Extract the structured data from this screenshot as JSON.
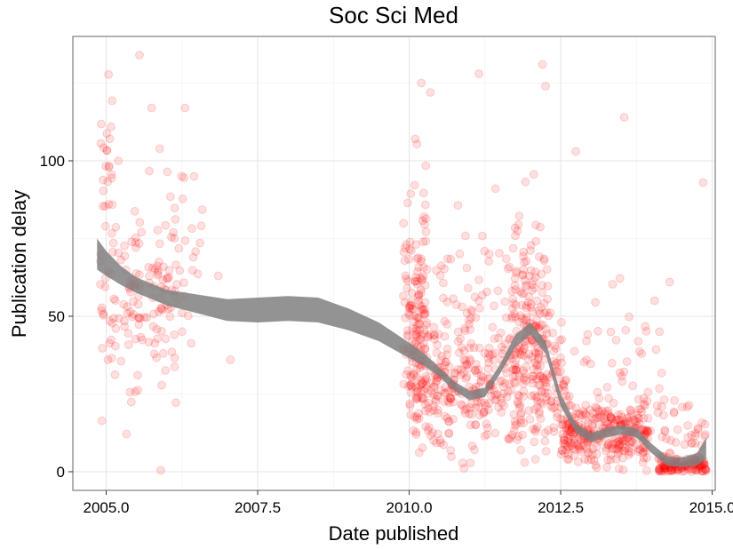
{
  "chart_data": {
    "type": "scatter",
    "title": "Soc Sci Med",
    "xlabel": "Date published",
    "ylabel": "Publication delay",
    "xlim": [
      2004.45,
      2015.05
    ],
    "ylim": [
      -6,
      140
    ],
    "x_ticks": [
      2005.0,
      2007.5,
      2010.0,
      2012.5,
      2015.0
    ],
    "x_tick_labels": [
      "2005.0",
      "2007.5",
      "2010.0",
      "2012.5",
      "2015.0"
    ],
    "y_ticks": [
      0,
      50,
      100
    ],
    "y_tick_labels": [
      "0",
      "50",
      "100"
    ],
    "grid": true,
    "legend": "none",
    "point_color": "#ff0000",
    "point_opacity": 0.12,
    "smooth_color": "#808080",
    "series": [
      {
        "type": "scatter",
        "clusters": [
          {
            "x_range": [
              2004.9,
              2006.3
            ],
            "y_mean": 55,
            "y_sd": 14,
            "n": 140
          },
          {
            "x_range": [
              2004.9,
              2005.1
            ],
            "y_mean": 100,
            "y_sd": 12,
            "n": 24
          },
          {
            "x_range": [
              2005.3,
              2006.6
            ],
            "y_mean": 72,
            "y_sd": 16,
            "n": 30
          },
          {
            "x_range": [
              2009.9,
              2010.3
            ],
            "y_mean": 55,
            "y_sd": 18,
            "n": 120
          },
          {
            "x_range": [
              2010.0,
              2011.9
            ],
            "y_mean": 28,
            "y_sd": 10,
            "n": 320
          },
          {
            "x_range": [
              2010.1,
              2012.0
            ],
            "y_mean": 55,
            "y_sd": 18,
            "n": 90
          },
          {
            "x_range": [
              2011.7,
              2012.3
            ],
            "y_mean": 48,
            "y_sd": 15,
            "n": 140
          },
          {
            "x_range": [
              2012.0,
              2012.6
            ],
            "y_mean": 28,
            "y_sd": 8,
            "n": 90
          },
          {
            "x_range": [
              2012.5,
              2014.0
            ],
            "y_mean": 12,
            "y_sd": 5,
            "n": 300
          },
          {
            "x_range": [
              2012.6,
              2014.2
            ],
            "y_mean": 30,
            "y_sd": 14,
            "n": 50
          },
          {
            "x_range": [
              2014.1,
              2014.9
            ],
            "y_mean": 2,
            "y_sd": 1.5,
            "n": 110
          },
          {
            "x_range": [
              2014.1,
              2014.9
            ],
            "y_mean": 10,
            "y_sd": 7,
            "n": 50
          }
        ],
        "outliers": [
          {
            "x": 2005.55,
            "y": 134
          },
          {
            "x": 2010.2,
            "y": 125
          },
          {
            "x": 2010.35,
            "y": 122
          },
          {
            "x": 2011.15,
            "y": 128
          },
          {
            "x": 2012.2,
            "y": 131
          },
          {
            "x": 2012.25,
            "y": 124
          },
          {
            "x": 2005.75,
            "y": 117
          },
          {
            "x": 2006.3,
            "y": 117
          },
          {
            "x": 2013.55,
            "y": 114
          },
          {
            "x": 2010.1,
            "y": 107
          },
          {
            "x": 2012.75,
            "y": 103
          },
          {
            "x": 2014.85,
            "y": 93
          },
          {
            "x": 2006.45,
            "y": 95
          },
          {
            "x": 2007.05,
            "y": 36
          },
          {
            "x": 2006.85,
            "y": 63
          },
          {
            "x": 2014.3,
            "y": 61
          },
          {
            "x": 2014.05,
            "y": 55
          },
          {
            "x": 2005.2,
            "y": 100
          }
        ]
      },
      {
        "type": "smooth",
        "x": [
          2004.85,
          2005.0,
          2005.25,
          2005.5,
          2006.0,
          2006.5,
          2007.0,
          2007.5,
          2008.0,
          2008.5,
          2009.0,
          2009.5,
          2010.0,
          2010.25,
          2010.5,
          2010.75,
          2011.0,
          2011.25,
          2011.5,
          2011.75,
          2012.0,
          2012.25,
          2012.5,
          2012.75,
          2013.0,
          2013.25,
          2013.5,
          2013.75,
          2014.0,
          2014.25,
          2014.5,
          2014.75,
          2014.9
        ],
        "y": [
          70,
          67,
          63,
          60,
          56,
          54,
          52,
          52,
          52.5,
          52,
          49,
          45,
          39,
          36,
          32,
          27.5,
          24.5,
          25.5,
          33,
          42,
          46,
          40,
          23,
          14,
          11,
          12.5,
          13.5,
          12.5,
          7.5,
          3.5,
          3,
          4,
          7.5
        ],
        "band_halfwidth": [
          5,
          4,
          3,
          2.5,
          2.5,
          3,
          3.5,
          4,
          4,
          4,
          3.5,
          3,
          2.5,
          2,
          1.5,
          1.5,
          1.5,
          1.5,
          1.5,
          2,
          2,
          2,
          2,
          1.5,
          1.5,
          1.5,
          1.5,
          1.5,
          1.5,
          1.5,
          1.5,
          2,
          3.5
        ]
      }
    ]
  }
}
